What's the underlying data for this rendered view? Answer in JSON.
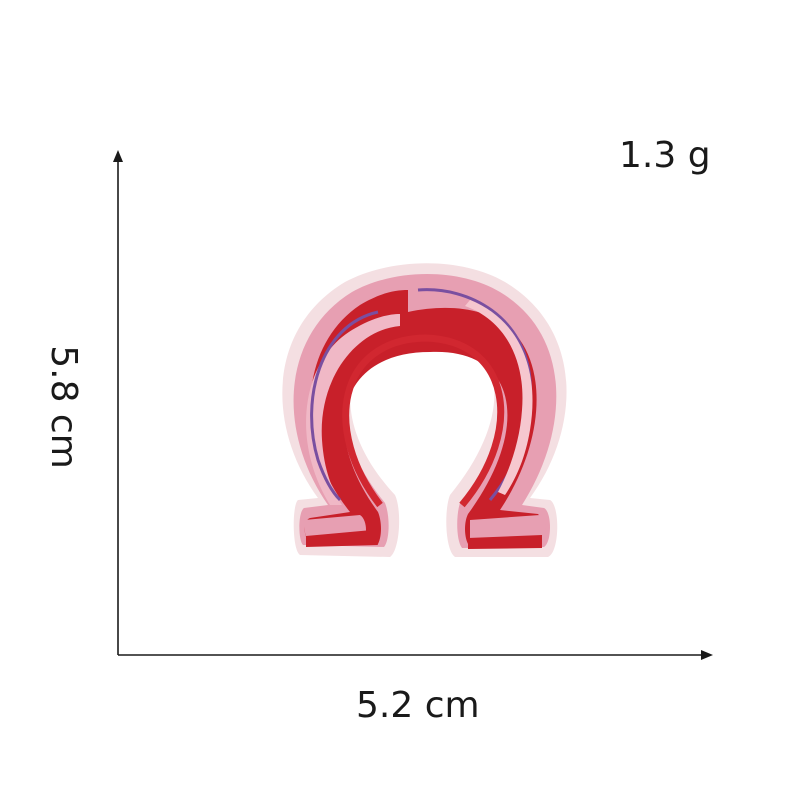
{
  "measurements": {
    "weight": "1.3 g",
    "width": "5.2 cm",
    "height": "5.8 cm"
  },
  "product": {
    "name": "horseshoe-patch",
    "colors": {
      "outer_border": "#f3d9dc",
      "outer_pink": "#e8a3b3",
      "red_band": "#c8202a",
      "purple_line": "#7a4fa0",
      "highlight": "#f6c7cf",
      "inner_red": "#d12730"
    }
  },
  "colors": {
    "axis": "#1a1a1a",
    "text": "#1a1a1a",
    "background": "#ffffff"
  }
}
